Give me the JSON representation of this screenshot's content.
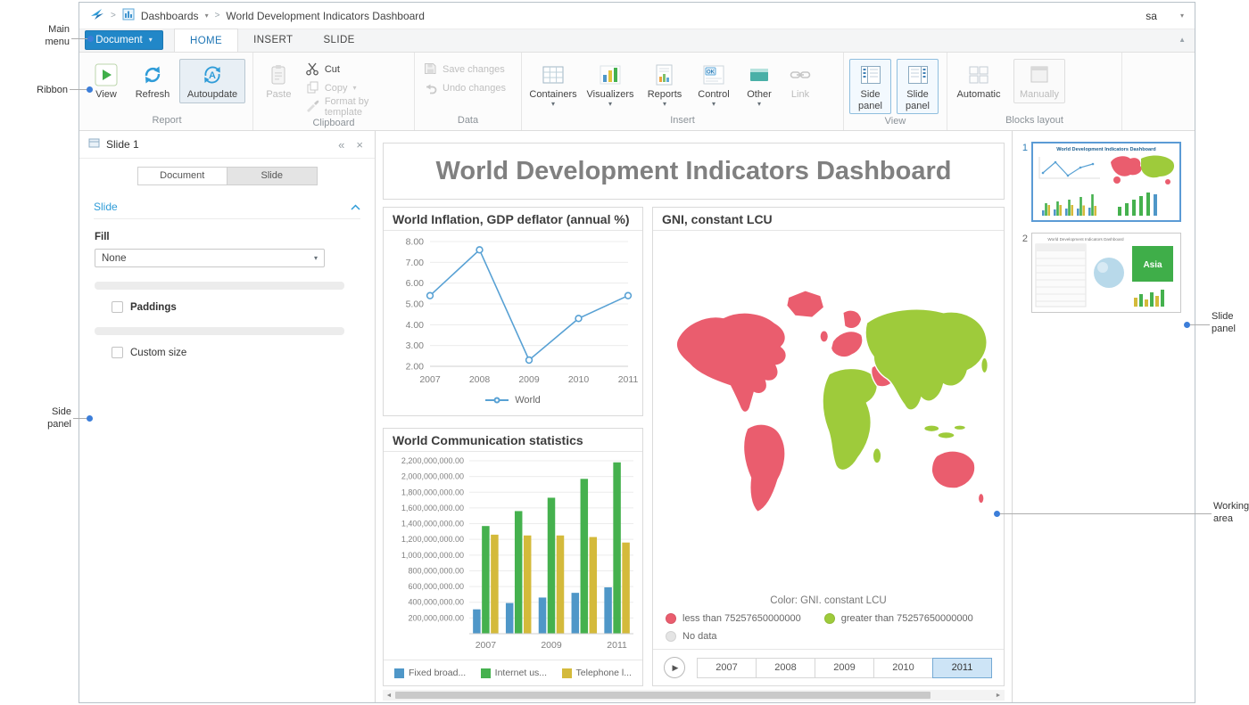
{
  "topbar": {
    "separator": ">",
    "dashboards_label": "Dashboards",
    "document_title": "World Development Indicators Dashboard",
    "user": "sa"
  },
  "menu": {
    "document_button": "Document",
    "tabs": [
      {
        "label": "HOME",
        "active": true
      },
      {
        "label": "INSERT",
        "active": false
      },
      {
        "label": "SLIDE",
        "active": false
      }
    ]
  },
  "ribbon": {
    "report": {
      "label": "Report",
      "view": "View",
      "refresh": "Refresh",
      "autoupdate": "Autoupdate"
    },
    "clipboard": {
      "label": "Clipboard",
      "paste": "Paste",
      "cut": "Cut",
      "copy": "Copy",
      "format": "Format by template"
    },
    "data": {
      "label": "Data",
      "save": "Save changes",
      "undo": "Undo changes"
    },
    "insert": {
      "label": "Insert",
      "containers": "Containers",
      "visualizers": "Visualizers",
      "reports": "Reports",
      "control": "Control",
      "control_icon_text": "OK",
      "other": "Other",
      "link": "Link"
    },
    "view": {
      "label": "View",
      "side_panel": "Side panel",
      "slide_panel": "Slide panel"
    },
    "blocks": {
      "label": "Blocks layout",
      "automatic": "Automatic",
      "manually": "Manually"
    }
  },
  "side_panel": {
    "title": "Slide 1",
    "tab_document": "Document",
    "tab_slide": "Slide",
    "section_title": "Slide",
    "fill_label": "Fill",
    "fill_value": "None",
    "paddings_label": "Paddings",
    "custom_size_label": "Custom size"
  },
  "dashboard": {
    "title": "World Development Indicators Dashboard",
    "map_panel": {
      "title": "GNI, constant LCU",
      "caption": "Color: GNI. constant LCU",
      "legend": [
        {
          "label": "less than 75257650000000",
          "color": "#ea5d6e"
        },
        {
          "label": "greater than 75257650000000",
          "color": "#9ecb3b"
        },
        {
          "label": "No data",
          "color": "#e4e4e4"
        }
      ],
      "years": [
        "2007",
        "2008",
        "2009",
        "2010",
        "2011"
      ],
      "selected_year": "2011"
    }
  },
  "slide_panel": {
    "slides": [
      {
        "number": "1",
        "preview_title": "World Development Indicators Dashboard",
        "selected": true
      },
      {
        "number": "2",
        "preview_title": "World Development Indicators Dashboard",
        "label": "Asia",
        "selected": false
      }
    ]
  },
  "annotations": {
    "main_menu": "Main menu",
    "ribbon": "Ribbon",
    "side_panel": "Side panel",
    "slide_panel": "Slide panel",
    "working_area": "Working area"
  },
  "icons": {
    "dropdown": "▾",
    "collapse_left": "«",
    "close": "×",
    "menu_collapse": "▲",
    "play": "▶",
    "scroll_left": "◄",
    "scroll_right": "►"
  },
  "chart_data": [
    {
      "type": "line",
      "title": "World Inflation, GDP deflator (annual %)",
      "x": [
        2007,
        2008,
        2009,
        2010,
        2011
      ],
      "series": [
        {
          "name": "World",
          "values": [
            5.4,
            7.6,
            2.3,
            4.3,
            5.4
          ]
        }
      ],
      "ylim": [
        2.0,
        8.0
      ],
      "yticks": [
        "8.00",
        "7.00",
        "6.00",
        "5.00",
        "4.00",
        "3.00",
        "2.00"
      ],
      "line_color": "#58a1d4",
      "grid": true,
      "legend_position": "bottom"
    },
    {
      "type": "bar",
      "title": "World Communication statistics",
      "categories": [
        "2007",
        "2008",
        "2009",
        "2010",
        "2011"
      ],
      "xtick_labels": [
        "2007",
        "2009",
        "2011"
      ],
      "series": [
        {
          "name": "Fixed broad...",
          "color": "#4f97c8",
          "values": [
            310000000,
            390000000,
            460000000,
            520000000,
            590000000
          ]
        },
        {
          "name": "Internet us...",
          "color": "#45b14e",
          "values": [
            1370000000,
            1560000000,
            1730000000,
            1970000000,
            2180000000
          ]
        },
        {
          "name": "Telephone l...",
          "color": "#d4ba3b",
          "values": [
            1260000000,
            1250000000,
            1250000000,
            1230000000,
            1160000000
          ]
        }
      ],
      "ylim": [
        0,
        2200000000
      ],
      "yticks": [
        "2,200,000,000.00",
        "2,000,000,000.00",
        "1,800,000,000.00",
        "1,600,000,000.00",
        "1,400,000,000.00",
        "1,200,000,000.00",
        "1,000,000,000.00",
        "800,000,000.00",
        "600,000,000.00",
        "400,000,000.00",
        "200,000,000.00"
      ],
      "grid": true,
      "legend_position": "bottom"
    }
  ]
}
